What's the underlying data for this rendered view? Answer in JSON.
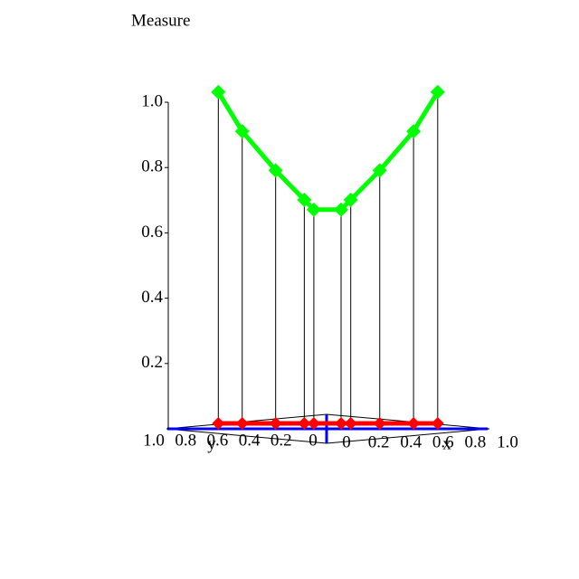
{
  "chart_data": {
    "type": "line3d",
    "title": "Measure",
    "x": [
      0,
      0,
      0,
      0,
      0,
      0.09,
      0.15,
      0.33,
      0.54,
      0.69
    ],
    "y": [
      0.68,
      0.53,
      0.32,
      0.14,
      0.08,
      0,
      0,
      0,
      0,
      0
    ],
    "values": [
      1.02,
      0.9,
      0.78,
      0.69,
      0.66,
      0.66,
      0.69,
      0.78,
      0.9,
      1.02
    ],
    "color": "#00ff00",
    "projection_color": "#ff0000",
    "axis_color": "#0000ff",
    "xlabel": "x",
    "ylabel": "y",
    "xlim": [
      0,
      1.0
    ],
    "ylim": [
      0,
      1.0
    ],
    "zlim": [
      0,
      1.0
    ],
    "xticks": [
      0,
      0.2,
      0.4,
      0.6,
      0.8,
      {
        "value": 1.0,
        "label": "1.0"
      }
    ],
    "yticks": [
      0,
      0.2,
      0.4,
      0.6,
      0.8,
      {
        "value": 1.0,
        "label": "1.0"
      }
    ],
    "zticks": [
      0.2,
      0.4,
      0.6,
      0.8,
      {
        "value": 1.0,
        "label": "1.0"
      }
    ]
  }
}
